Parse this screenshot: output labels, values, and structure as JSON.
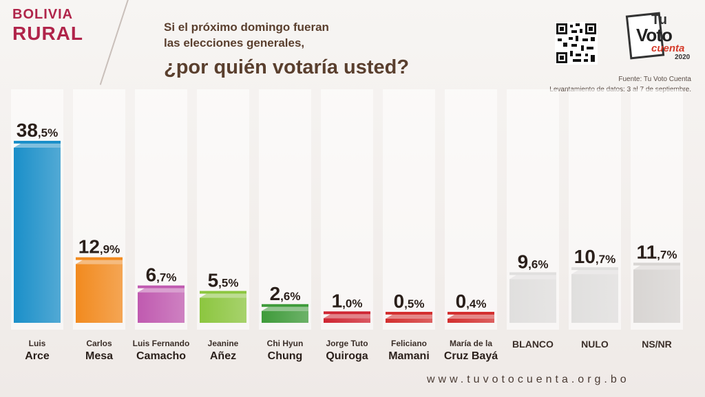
{
  "header": {
    "brand_line1": "BOLIVIA",
    "brand_line2": "RURAL",
    "question_line1": "Si el próximo domingo fueran",
    "question_line2": "las elecciones generales,",
    "question_line3": "¿por quién votaría usted?"
  },
  "logo": {
    "tu": "Tu",
    "voto": "Voto",
    "cuenta": "cuenta",
    "year": "2020"
  },
  "source": {
    "line1": "Fuente: Tu Voto Cuenta",
    "line2": "Levantamiento de datos: 3 al 7 de septiembre."
  },
  "footer": {
    "url": "www.tuvotocuenta.org.bo"
  },
  "chart_data": {
    "type": "bar",
    "title": "¿por quién votaría usted?",
    "categories": [
      [
        "Luis",
        "Arce"
      ],
      [
        "Carlos",
        "Mesa"
      ],
      [
        "Luis Fernando",
        "Camacho"
      ],
      [
        "Jeanine",
        "Añez"
      ],
      [
        "Chi Hyun",
        "Chung"
      ],
      [
        "Jorge Tuto",
        "Quiroga"
      ],
      [
        "Feliciano",
        "Mamani"
      ],
      [
        "María de la",
        "Cruz Bayá"
      ],
      [
        "",
        "BLANCO"
      ],
      [
        "",
        "NULO"
      ],
      [
        "",
        "NS/NR"
      ]
    ],
    "values": [
      38.5,
      12.9,
      6.7,
      5.5,
      2.6,
      1.0,
      0.5,
      0.4,
      9.6,
      10.7,
      11.7
    ],
    "value_labels": [
      "38,5%",
      "12,9%",
      "6,7%",
      "5,5%",
      "2,6%",
      "1,0%",
      "0,5%",
      "0,4%",
      "9,6%",
      "10,7%",
      "11,7%"
    ],
    "colors": [
      "#1a8fc9",
      "#f28a1e",
      "#c05ab0",
      "#8cc63f",
      "#3e9b3a",
      "#cf2532",
      "#d32f2f",
      "#d32f2f",
      "#e0dfde",
      "#e0dfde",
      "#d8d5d3"
    ],
    "ylim": [
      0,
      38.5
    ],
    "grid": false
  }
}
